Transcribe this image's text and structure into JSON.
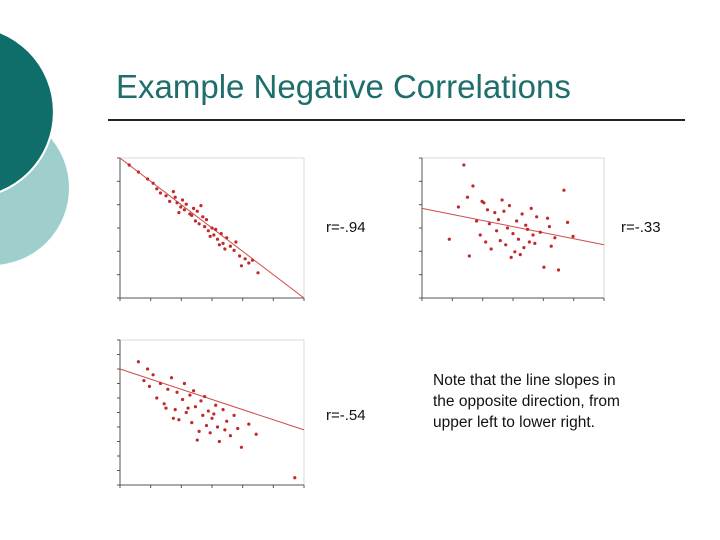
{
  "slide": {
    "title": "Example Negative Correlations",
    "colors": {
      "accent_dark": "#0f6e6a",
      "accent_light": "#9fcfcc",
      "points": "#c0282a",
      "fit_line": "#d04a4a",
      "axes": "#555555"
    }
  },
  "labels": {
    "r1": "r=-.94",
    "r2": "r=-.33",
    "r3": "r=-.54"
  },
  "note": "Note that the line slopes in the opposite direction, from upper left to lower right.",
  "chart_data": [
    {
      "type": "scatter",
      "id": "plot1",
      "r_label": "r=-.94",
      "xlim": [
        0,
        10
      ],
      "ylim": [
        0,
        10
      ],
      "fit_line": {
        "x": [
          0,
          10
        ],
        "y": [
          10,
          0
        ]
      },
      "x": [
        0.5,
        1.0,
        1.5,
        1.8,
        2.0,
        2.2,
        2.5,
        2.7,
        3.0,
        3.1,
        3.3,
        3.4,
        3.5,
        3.6,
        3.8,
        4.0,
        4.1,
        4.2,
        4.3,
        4.5,
        4.6,
        4.7,
        4.8,
        5.0,
        5.1,
        5.2,
        5.3,
        5.5,
        5.6,
        5.8,
        6.0,
        6.2,
        6.3,
        6.5,
        6.8,
        7.0,
        7.2,
        7.5,
        3.9,
        2.9,
        4.4,
        5.4,
        6.6,
        3.2,
        4.9,
        5.7
      ],
      "y": [
        9.5,
        9.0,
        8.5,
        8.2,
        7.8,
        7.5,
        7.3,
        6.9,
        7.2,
        6.8,
        6.5,
        7.0,
        6.3,
        6.7,
        6.0,
        6.4,
        5.5,
        6.2,
        5.3,
        5.8,
        5.1,
        5.6,
        4.8,
        5.0,
        4.5,
        4.9,
        4.2,
        4.6,
        3.9,
        4.3,
        3.7,
        3.4,
        4.0,
        3.0,
        2.8,
        2.5,
        2.7,
        1.8,
        5.9,
        7.6,
        6.6,
        3.8,
        2.3,
        6.1,
        4.4,
        3.5
      ]
    },
    {
      "type": "scatter",
      "id": "plot2",
      "r_label": "r=-.33",
      "xlim": [
        0,
        10
      ],
      "ylim": [
        0,
        10
      ],
      "fit_line": {
        "x": [
          0,
          10
        ],
        "y": [
          6.4,
          3.8
        ]
      },
      "x": [
        1.5,
        2.0,
        2.3,
        2.5,
        2.8,
        3.0,
        3.2,
        3.4,
        3.5,
        3.7,
        3.8,
        4.0,
        4.1,
        4.2,
        4.3,
        4.5,
        4.6,
        4.7,
        4.8,
        5.0,
        5.1,
        5.2,
        5.3,
        5.5,
        5.6,
        5.7,
        5.8,
        6.0,
        6.2,
        6.3,
        6.5,
        6.7,
        7.0,
        7.3,
        7.5,
        7.8,
        8.0,
        8.3,
        2.6,
        3.3,
        4.4,
        5.4,
        6.1,
        6.9,
        4.9,
        3.6,
        5.9,
        7.1
      ],
      "y": [
        4.2,
        6.5,
        9.5,
        7.2,
        8.0,
        5.5,
        4.5,
        6.8,
        4.0,
        5.3,
        3.5,
        6.1,
        4.8,
        5.6,
        4.1,
        6.2,
        3.8,
        5.0,
        6.6,
        4.6,
        3.3,
        5.5,
        4.2,
        6.0,
        3.6,
        5.2,
        4.9,
        6.4,
        3.9,
        5.8,
        4.7,
        2.2,
        5.1,
        4.3,
        2.0,
        7.7,
        5.4,
        4.4,
        3.0,
        6.9,
        7.0,
        3.1,
        4.5,
        5.7,
        2.9,
        6.3,
        4.0,
        3.7
      ]
    },
    {
      "type": "scatter",
      "id": "plot3",
      "r_label": "r=-.54",
      "xlim": [
        0,
        10
      ],
      "ylim": [
        0,
        10
      ],
      "fit_line": {
        "x": [
          0,
          10
        ],
        "y": [
          8.0,
          3.8
        ]
      },
      "x": [
        1.0,
        1.3,
        1.6,
        1.8,
        2.0,
        2.2,
        2.4,
        2.6,
        2.8,
        3.0,
        3.1,
        3.2,
        3.4,
        3.5,
        3.6,
        3.8,
        3.9,
        4.0,
        4.1,
        4.3,
        4.4,
        4.5,
        4.6,
        4.8,
        4.9,
        5.0,
        5.2,
        5.3,
        5.4,
        5.6,
        5.8,
        6.0,
        6.2,
        6.4,
        6.6,
        7.0,
        7.4,
        9.5,
        1.5,
        2.9,
        3.7,
        4.2,
        5.1,
        5.7,
        2.5,
        4.7
      ],
      "y": [
        8.5,
        7.2,
        6.8,
        7.6,
        6.0,
        7.0,
        5.6,
        6.6,
        7.4,
        5.2,
        6.4,
        4.5,
        5.9,
        7.0,
        5.0,
        6.2,
        4.3,
        6.5,
        5.4,
        3.7,
        5.8,
        4.8,
        6.1,
        5.1,
        3.6,
        4.6,
        5.5,
        4.0,
        3.0,
        5.2,
        4.4,
        3.4,
        4.8,
        3.9,
        2.6,
        4.2,
        3.5,
        0.5,
        8.0,
        4.6,
        5.3,
        3.1,
        4.9,
        3.8,
        5.3,
        4.1
      ]
    }
  ]
}
